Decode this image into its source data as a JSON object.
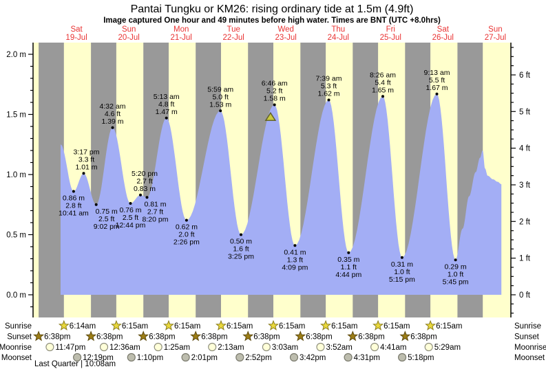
{
  "title": "Pantai Tungku or KM26: rising  ordinary tide at 1.5m (4.9ft)",
  "subtitle": "Image captured One hour and 49 minutes before high water. Times are BNT (UTC +8.0hrs)",
  "colors": {
    "day_band": "#ffffcc",
    "night_band": "#999999",
    "tide_fill": "#a3aef5",
    "day_label": "#e93333",
    "axis": "#000000",
    "capture_marker_fill": "#c9c93e",
    "capture_marker_stroke": "#62622c",
    "sunrise_star_fill": "#e9d83b",
    "sunrise_star_stroke": "#8a7d20",
    "sunset_star_fill": "#9c7d15",
    "sunset_star_stroke": "#5e4b10",
    "moonrise_fill": "#ffffd9",
    "moonrise_stroke": "#8f8f7d",
    "moonset_fill": "#bdbdae",
    "moonset_stroke": "#7a7a6d"
  },
  "chart_data": {
    "type": "area",
    "ylabel_left_unit": "m",
    "ylabel_right_unit": "ft",
    "y_left_ticks": [
      {
        "value": 0.0,
        "label": "0.0 m"
      },
      {
        "value": 0.5,
        "label": "0.5 m"
      },
      {
        "value": 1.0,
        "label": "1.0 m"
      },
      {
        "value": 1.5,
        "label": "1.5 m"
      },
      {
        "value": 2.0,
        "label": "2.0 m"
      }
    ],
    "y_right_ticks": [
      {
        "value": 0,
        "label": "0 ft"
      },
      {
        "value": 1,
        "label": "1 ft"
      },
      {
        "value": 2,
        "label": "2 ft"
      },
      {
        "value": 3,
        "label": "3 ft"
      },
      {
        "value": 4,
        "label": "4 ft"
      },
      {
        "value": 5,
        "label": "5 ft"
      },
      {
        "value": 6,
        "label": "6 ft"
      }
    ],
    "days": [
      {
        "dow": "Sat",
        "date": "19-Jul",
        "noon_h": 36
      },
      {
        "dow": "Sun",
        "date": "20-Jul",
        "noon_h": 60
      },
      {
        "dow": "Mon",
        "date": "21-Jul",
        "noon_h": 84
      },
      {
        "dow": "Tue",
        "date": "22-Jul",
        "noon_h": 108
      },
      {
        "dow": "Wed",
        "date": "23-Jul",
        "noon_h": 132
      },
      {
        "dow": "Thu",
        "date": "24-Jul",
        "noon_h": 156
      },
      {
        "dow": "Fri",
        "date": "25-Jul",
        "noon_h": 180
      },
      {
        "dow": "Sat",
        "date": "26-Jul",
        "noon_h": 204
      },
      {
        "dow": "Sun",
        "date": "27-Jul",
        "noon_h": 228
      }
    ],
    "night_bands_h": [
      [
        18.633,
        30.233
      ],
      [
        42.633,
        54.25
      ],
      [
        66.633,
        78.25
      ],
      [
        90.633,
        102.25
      ],
      [
        114.633,
        126.25
      ],
      [
        138.633,
        150.25
      ],
      [
        162.633,
        174.25
      ],
      [
        186.633,
        198.25
      ],
      [
        210.633,
        222.25
      ]
    ],
    "tide_events": [
      {
        "kind": "low",
        "time": "10:41 am",
        "ft": "2.8 ft",
        "m": "0.86 m",
        "h": 34.683,
        "height_m": 0.86,
        "label_dx": 0
      },
      {
        "kind": "high",
        "time": "3:17 pm",
        "ft": "3.3 ft",
        "m": "1.01 m",
        "h": 39.283,
        "height_m": 1.01,
        "label_dx": 4
      },
      {
        "kind": "low",
        "time": "9:02 pm",
        "ft": "2.5 ft",
        "m": "0.75 m",
        "h": 45.033,
        "height_m": 0.75,
        "label_dx": 15
      },
      {
        "kind": "high",
        "time": "4:32 am",
        "ft": "4.6 ft",
        "m": "1.39 m",
        "h": 52.533,
        "height_m": 1.39,
        "label_dx": 0
      },
      {
        "kind": "low",
        "time": "12:44 pm",
        "ft": "2.5 ft",
        "m": "0.76 m",
        "h": 60.733,
        "height_m": 0.76,
        "label_dx": 0
      },
      {
        "kind": "high",
        "time": "5:20 pm",
        "ft": "2.7 ft",
        "m": "0.83 m",
        "h": 65.333,
        "height_m": 0.83,
        "label_dx": 6
      },
      {
        "kind": "low",
        "time": "8:20 pm",
        "ft": "2.7 ft",
        "m": "0.81 m",
        "h": 68.333,
        "height_m": 0.81,
        "label_dx": 12
      },
      {
        "kind": "high",
        "time": "5:13 am",
        "ft": "4.8 ft",
        "m": "1.47 m",
        "h": 77.217,
        "height_m": 1.47,
        "label_dx": 0
      },
      {
        "kind": "low",
        "time": "2:26 pm",
        "ft": "2.0 ft",
        "m": "0.62 m",
        "h": 86.433,
        "height_m": 0.62,
        "label_dx": 0
      },
      {
        "kind": "high",
        "time": "5:59 am",
        "ft": "5.0 ft",
        "m": "1.53 m",
        "h": 101.983,
        "height_m": 1.53,
        "label_dx": 0
      },
      {
        "kind": "low",
        "time": "3:25 pm",
        "ft": "1.6 ft",
        "m": "0.50 m",
        "h": 111.417,
        "height_m": 0.5,
        "label_dx": 0
      },
      {
        "kind": "high",
        "time": "6:46 am",
        "ft": "5.2 ft",
        "m": "1.58 m",
        "h": 126.767,
        "height_m": 1.58,
        "label_dx": 0
      },
      {
        "kind": "low",
        "time": "4:09 pm",
        "ft": "1.3 ft",
        "m": "0.41 m",
        "h": 136.15,
        "height_m": 0.41,
        "label_dx": 0
      },
      {
        "kind": "high",
        "time": "7:39 am",
        "ft": "5.3 ft",
        "m": "1.62 m",
        "h": 151.65,
        "height_m": 1.62,
        "label_dx": 0
      },
      {
        "kind": "low",
        "time": "4:44 pm",
        "ft": "1.1 ft",
        "m": "0.35 m",
        "h": 160.733,
        "height_m": 0.35,
        "label_dx": 0
      },
      {
        "kind": "high",
        "time": "8:26 am",
        "ft": "5.4 ft",
        "m": "1.65 m",
        "h": 176.433,
        "height_m": 1.65,
        "label_dx": 0
      },
      {
        "kind": "low",
        "time": "5:15 pm",
        "ft": "1.0 ft",
        "m": "0.31 m",
        "h": 185.25,
        "height_m": 0.31,
        "label_dx": 0
      },
      {
        "kind": "high",
        "time": "9:13 am",
        "ft": "5.5 ft",
        "m": "1.67 m",
        "h": 201.217,
        "height_m": 1.67,
        "label_dx": 0
      },
      {
        "kind": "low",
        "time": "5:45 pm",
        "ft": "1.0 ft",
        "m": "0.29 m",
        "h": 209.75,
        "height_m": 0.29,
        "label_dx": 0
      }
    ],
    "curve_start": {
      "h": 28.7,
      "height_m": 1.25
    },
    "curve_tail_h_m": [
      [
        213.0,
        0.55
      ],
      [
        216.0,
        0.82
      ],
      [
        219.0,
        1.02
      ],
      [
        221.0,
        1.14
      ],
      [
        222.2,
        1.2
      ],
      [
        223.3,
        1.05
      ],
      [
        224.5,
        0.99
      ],
      [
        227.0,
        0.96
      ],
      [
        229.0,
        0.94
      ],
      [
        230.8,
        0.92
      ]
    ],
    "capture_marker": {
      "h": 124.95,
      "height_m": 1.49
    }
  },
  "astro": {
    "rows": [
      {
        "id": "sunrise",
        "label": "Sunrise",
        "icon": "sunrise-star",
        "entries": [
          {
            "time": "6:14am",
            "h": 30.233
          },
          {
            "time": "6:15am",
            "h": 54.25
          },
          {
            "time": "6:15am",
            "h": 78.25
          },
          {
            "time": "6:15am",
            "h": 102.25
          },
          {
            "time": "6:15am",
            "h": 126.25
          },
          {
            "time": "6:15am",
            "h": 150.25
          },
          {
            "time": "6:15am",
            "h": 174.25
          },
          {
            "time": "6:15am",
            "h": 198.25
          }
        ]
      },
      {
        "id": "sunset",
        "label": "Sunset",
        "icon": "sunset-star",
        "entries": [
          {
            "time": "6:38pm",
            "h": 18.633
          },
          {
            "time": "6:38pm",
            "h": 42.633
          },
          {
            "time": "6:38pm",
            "h": 66.633
          },
          {
            "time": "6:38pm",
            "h": 90.633
          },
          {
            "time": "6:38pm",
            "h": 114.633
          },
          {
            "time": "6:38pm",
            "h": 138.633
          },
          {
            "time": "6:38pm",
            "h": 162.633
          },
          {
            "time": "6:38pm",
            "h": 186.633
          }
        ]
      },
      {
        "id": "moonrise",
        "label": "Moonrise",
        "icon": "moonrise-circle",
        "entries": [
          {
            "time": "11:47pm",
            "h": 23.783
          },
          {
            "time": "12:36am",
            "h": 48.6
          },
          {
            "time": "1:25am",
            "h": 73.417
          },
          {
            "time": "2:13am",
            "h": 98.217
          },
          {
            "time": "3:03am",
            "h": 123.05
          },
          {
            "time": "3:52am",
            "h": 147.867
          },
          {
            "time": "4:41am",
            "h": 172.683
          },
          {
            "time": "5:29am",
            "h": 197.483
          }
        ]
      },
      {
        "id": "moonset",
        "label": "Moonset",
        "icon": "moonset-circle",
        "entries": [
          {
            "time": "12:19pm",
            "h": 36.317
          },
          {
            "time": "1:10pm",
            "h": 61.167
          },
          {
            "time": "2:01pm",
            "h": 86.017
          },
          {
            "time": "2:52pm",
            "h": 110.867
          },
          {
            "time": "3:42pm",
            "h": 135.7
          },
          {
            "time": "4:31pm",
            "h": 160.517
          },
          {
            "time": "5:18pm",
            "h": 185.3
          }
        ]
      }
    ],
    "moon_phase": "Last Quarter | 10:08am"
  }
}
